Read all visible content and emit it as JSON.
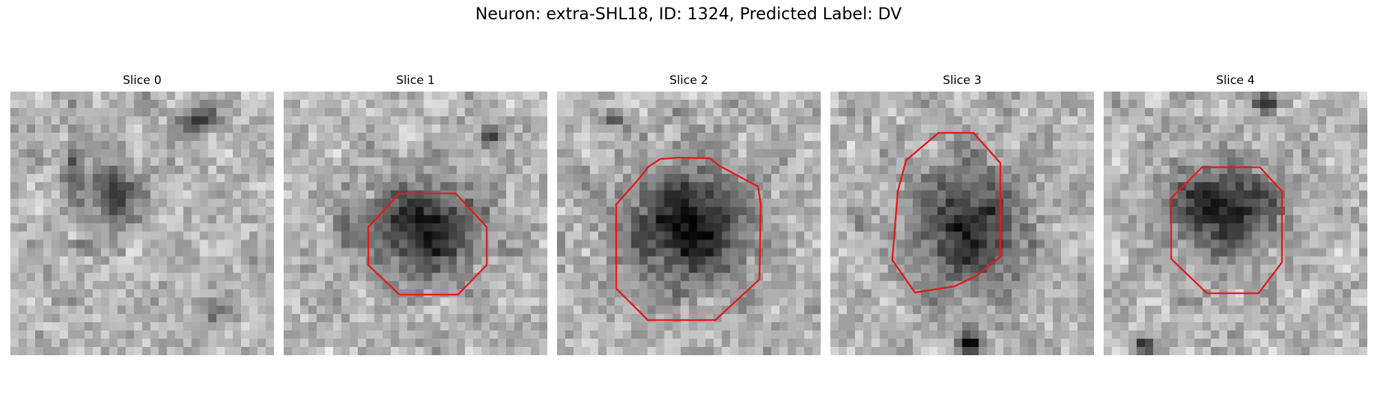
{
  "figure": {
    "title": "Neuron: extra-SHL18, ID: 1324, Predicted Label: DV"
  },
  "slices": [
    {
      "title": "Slice 0",
      "has_contour": false
    },
    {
      "title": "Slice 1",
      "has_contour": true
    },
    {
      "title": "Slice 2",
      "has_contour": true
    },
    {
      "title": "Slice 3",
      "has_contour": true
    },
    {
      "title": "Slice 4",
      "has_contour": true
    }
  ],
  "colors": {
    "contour": "#e31a1c",
    "background": "#ffffff"
  }
}
